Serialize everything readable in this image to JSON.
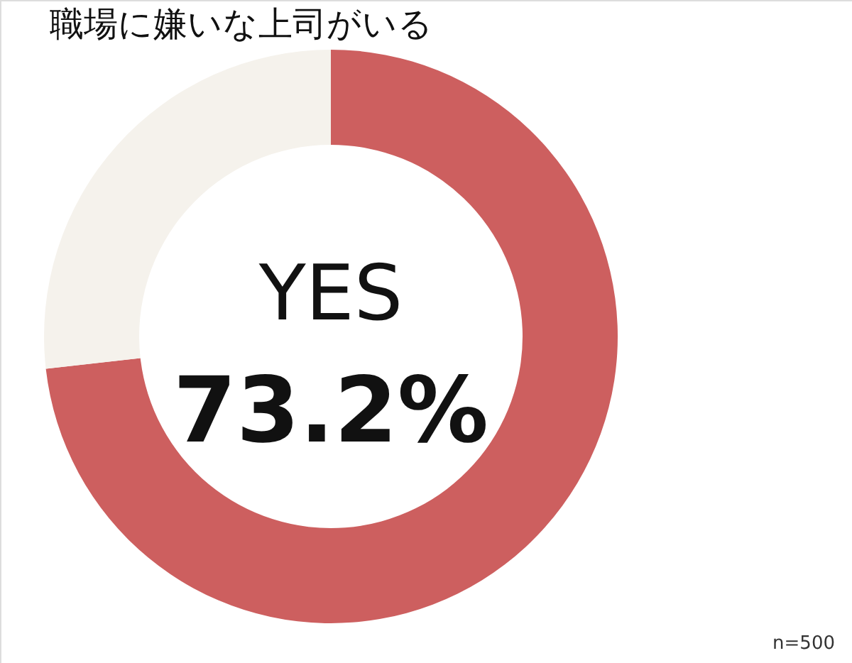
{
  "chart_data": {
    "type": "donut",
    "title": "職場に嫌いな上司がいる",
    "categories": [
      "YES",
      null
    ],
    "values": [
      73.2,
      26.8
    ],
    "colors": [
      "#cd5f5f",
      "#f5f2ec"
    ],
    "value_labels": [
      "73.2%",
      null
    ],
    "annotations": [
      "n=500"
    ]
  }
}
